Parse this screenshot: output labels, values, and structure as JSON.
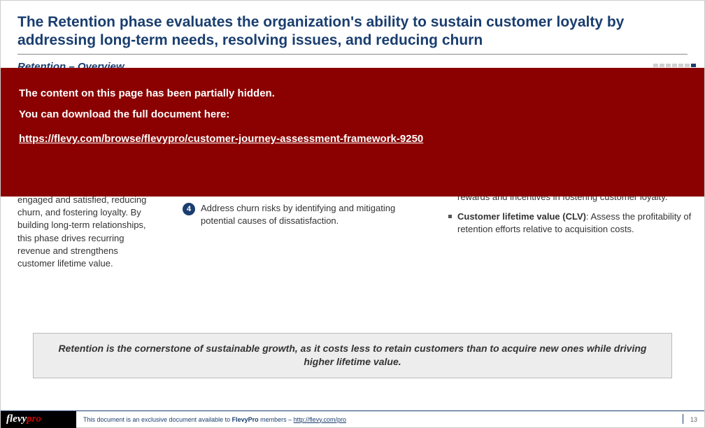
{
  "title": "The Retention phase evaluates the organization's ability to sustain customer loyalty by addressing long-term needs, resolving issues, and reducing churn",
  "subtitle": "Retention – Overview",
  "overlay": {
    "line1": "The content on this page has been partially hidden.",
    "line2": "You can download the full document here:",
    "url": "https://flevy.com/browse/flevypro/customer-journey-assessment-framework-9250",
    "bg_color": "#8b0000",
    "text_color": "#ffffff"
  },
  "left_text": "engaged and satisfied, reducing churn, and fostering loyalty. By building long-term relationships, this phase drives recurring revenue and strengthens customer lifetime value.",
  "mid_item": {
    "num": "4",
    "text": "Address churn risks by identifying and mitigating potential causes of dissatisfaction."
  },
  "right_items": [
    {
      "frag": "rewards and incentives in fostering customer loyalty."
    },
    {
      "bold": "Customer lifetime value (CLV)",
      "rest": ": Assess the profitability of retention efforts relative to acquisition costs."
    }
  ],
  "callout": "Retention is the cornerstone of sustainable growth, as it costs less to retain customers than to acquire new ones while driving higher lifetime value.",
  "footer": {
    "logo_main": "flevy",
    "logo_sub": "pro",
    "text_pre": "This document is an exclusive document available to ",
    "text_bold": "FlevyPro",
    "text_post": " members – ",
    "link": "http://flevy.com/pro"
  },
  "page_number": "13",
  "progress": {
    "total": 7,
    "active_index": 6,
    "inactive_color": "#d0d0d0",
    "active_color": "#1a3e6f"
  },
  "colors": {
    "title": "#1a3e6f",
    "badge_bg": "#1a3e6f",
    "callout_bg": "#ededed"
  }
}
